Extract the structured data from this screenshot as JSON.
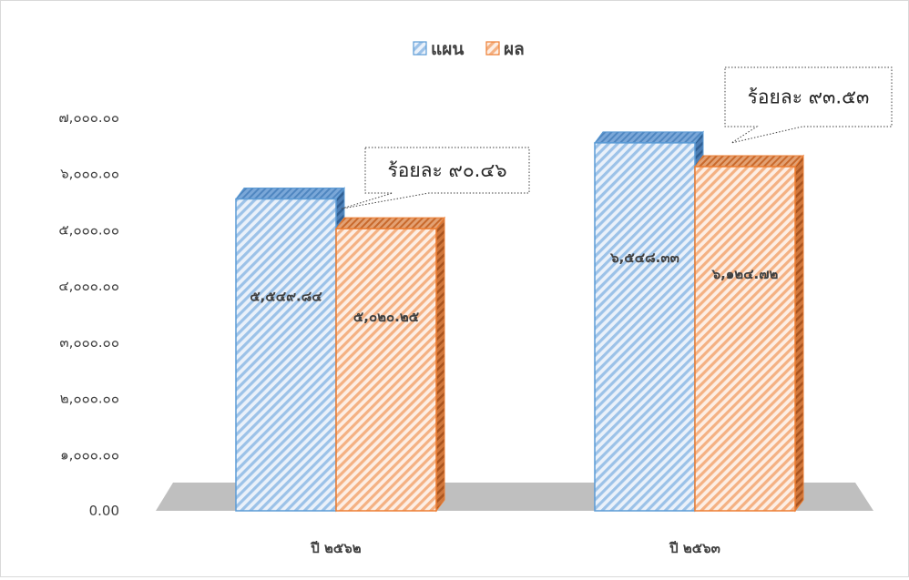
{
  "chart_data": {
    "type": "bar",
    "categories": [
      "ปี ๒๕๖๒",
      "ปี ๒๕๖๓"
    ],
    "series": [
      {
        "name": "แผน",
        "values": [
          5549.84,
          6548.33
        ],
        "labels": [
          "๕,๕๔๙.๘๔",
          "๖,๕๔๘.๓๓"
        ],
        "color": "#5b9bd5",
        "pattern": "diagonal-stripes"
      },
      {
        "name": "ผล",
        "values": [
          5020.25,
          6124.72
        ],
        "labels": [
          "๕,๐๒๐.๒๕",
          "๖,๑๒๔.๗๒"
        ],
        "color": "#ed7d31",
        "pattern": "diagonal-stripes"
      }
    ],
    "ylim": [
      0,
      7000
    ],
    "yticks": [
      "0.00",
      "๑,๐๐๐.๐๐",
      "๒,๐๐๐.๐๐",
      "๓,๐๐๐.๐๐",
      "๔,๐๐๐.๐๐",
      "๕,๐๐๐.๐๐",
      "๖,๐๐๐.๐๐",
      "๗,๐๐๐.๐๐"
    ],
    "annotations": [
      "ร้อยละ ๙๐.๔๖",
      "ร้อยละ ๙๓.๕๓"
    ],
    "legend_position": "top-center",
    "grid": false,
    "style": "3d-bar",
    "floor_color": "#bfbfbf"
  }
}
